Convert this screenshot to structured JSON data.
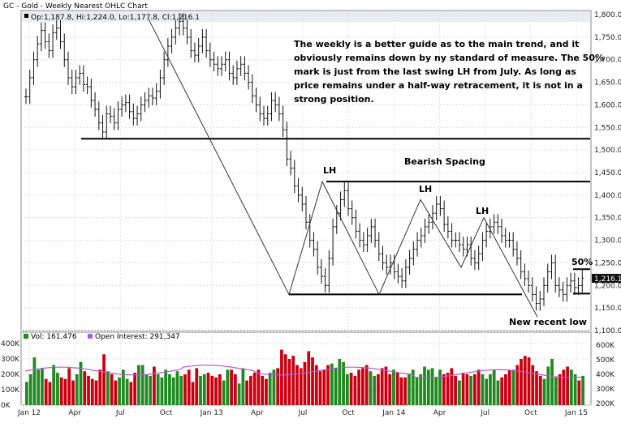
{
  "chart_data": {
    "type": "ohlc",
    "title": "GC - Gold - Weekly Nearest OHLC Chart",
    "last_bar_readout": "Op:1,187.8, Hi:1,224.0, Lo:1,177.8, Cl:1,216.1",
    "last_price_label": "1,216.1",
    "price_axis": {
      "ylim": [
        1100,
        1800
      ],
      "ticks": [
        "1,800.0",
        "1,750.0",
        "1,700.0",
        "1,650.0",
        "1,600.0",
        "1,550.0",
        "1,500.0",
        "1,450.0",
        "1,400.0",
        "1,350.0",
        "1,300.0",
        "1,250.0",
        "1,200.0",
        "1,150.0",
        "1,100.0"
      ]
    },
    "x_axis": {
      "ticks": [
        "Jan 12",
        "Apr",
        "Jul",
        "Oct",
        "Jan 13",
        "Apr",
        "Jul",
        "Oct",
        "Jan 14",
        "Apr",
        "Jul",
        "Oct",
        "Jan 15"
      ]
    },
    "price_series": [
      1618,
      1660,
      1700,
      1735,
      1765,
      1740,
      1720,
      1760,
      1770,
      1740,
      1700,
      1660,
      1640,
      1660,
      1670,
      1645,
      1640,
      1610,
      1590,
      1560,
      1540,
      1580,
      1575,
      1560,
      1590,
      1600,
      1605,
      1585,
      1570,
      1580,
      1600,
      1610,
      1620,
      1615,
      1630,
      1660,
      1700,
      1730,
      1750,
      1770,
      1785,
      1770,
      1750,
      1720,
      1710,
      1730,
      1750,
      1720,
      1700,
      1690,
      1680,
      1690,
      1700,
      1670,
      1660,
      1680,
      1690,
      1670,
      1650,
      1620,
      1600,
      1580,
      1570,
      1580,
      1610,
      1600,
      1580,
      1545,
      1480,
      1460,
      1420,
      1400,
      1380,
      1340,
      1300,
      1280,
      1240,
      1220,
      1200,
      1260,
      1330,
      1360,
      1390,
      1410,
      1370,
      1350,
      1320,
      1300,
      1290,
      1310,
      1330,
      1300,
      1270,
      1250,
      1240,
      1250,
      1230,
      1220,
      1210,
      1240,
      1260,
      1280,
      1300,
      1310,
      1330,
      1340,
      1360,
      1380,
      1370,
      1335,
      1320,
      1300,
      1300,
      1290,
      1280,
      1290,
      1260,
      1250,
      1270,
      1300,
      1320,
      1330,
      1340,
      1330,
      1310,
      1300,
      1300,
      1280,
      1260,
      1230,
      1215,
      1200,
      1180,
      1160,
      1170,
      1200,
      1230,
      1250,
      1200,
      1190,
      1180,
      1200,
      1210,
      1195,
      1200,
      1216
    ],
    "lines_annotations": {
      "swing_LH_labels": [
        "LH",
        "LH",
        "LH"
      ],
      "bearish_spacing": "Bearish Spacing",
      "fifty_pct": "50%",
      "new_low": "New recent low",
      "horizontal_levels": [
        1525,
        1430,
        1180
      ]
    },
    "commentary": "The weekly is a better guide as to the main trend, and it obviously remains down by ny standard of measure.  The 50% mark is just from the last swing LH from July.  As long as price remains under a half-way retracement, it is not in a strong position.",
    "volume_panel": {
      "vol_label": "Vol: 161,476",
      "oi_label": "Open Interest: 291,347",
      "left_ticks": [
        "400K",
        "300K",
        "200K",
        "100K",
        "0K"
      ],
      "right_ticks": [
        "600K",
        "500K",
        "400K",
        "300K",
        "200K"
      ],
      "volume_values_k": [
        150,
        200,
        310,
        230,
        240,
        170,
        150,
        260,
        210,
        180,
        170,
        240,
        160,
        200,
        280,
        220,
        190,
        170,
        160,
        230,
        330,
        220,
        200,
        160,
        180,
        230,
        170,
        150,
        210,
        260,
        260,
        200,
        190,
        250,
        200,
        180,
        230,
        200,
        180,
        220,
        190,
        200,
        230,
        150,
        240,
        190,
        200,
        210,
        190,
        180,
        200,
        160,
        230,
        230,
        200,
        140,
        240,
        160,
        190,
        210,
        230,
        190,
        170,
        210,
        230,
        240,
        360,
        330,
        300,
        320,
        260,
        240,
        280,
        350,
        310,
        260,
        220,
        230,
        260,
        270,
        240,
        300,
        280,
        200,
        210,
        190,
        230,
        240,
        260,
        220,
        190,
        200,
        240,
        250,
        200,
        230,
        210,
        180,
        180,
        200,
        230,
        180,
        200,
        250,
        230,
        240,
        180,
        230,
        200,
        210,
        240,
        190,
        160,
        210,
        200,
        190,
        200,
        230,
        200,
        170,
        200,
        230,
        160,
        180,
        200,
        230,
        230,
        260,
        300,
        320,
        310,
        260,
        220,
        190,
        170,
        250,
        300,
        180,
        200,
        230,
        250,
        230,
        200,
        160,
        190
      ],
      "volume_colors": [
        "#c8000f",
        "#1f8a1f"
      ],
      "oi_color": "#b05cd8"
    }
  }
}
